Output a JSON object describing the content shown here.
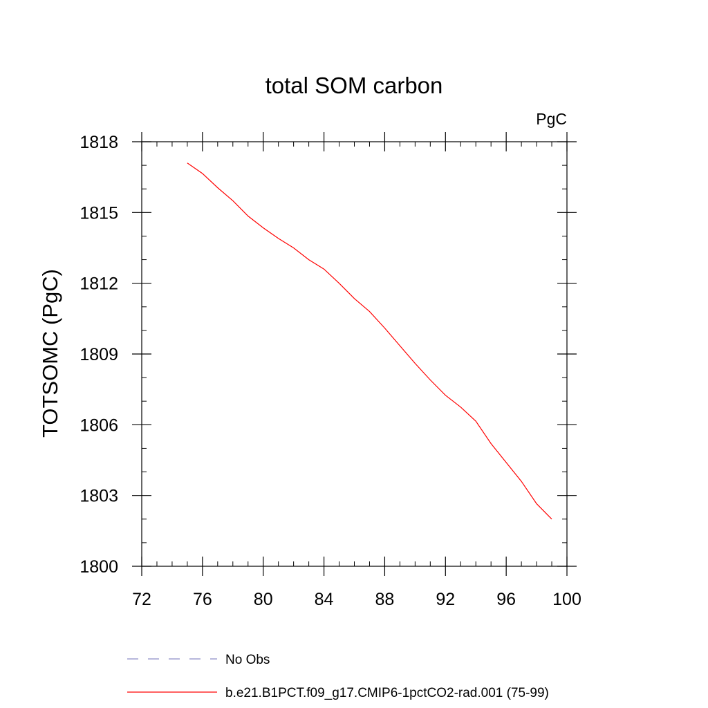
{
  "chart_data": {
    "type": "line",
    "title": "total SOM carbon",
    "units_label": "PgC",
    "xlabel": "",
    "ylabel": "TOTSOMC  (PgC)",
    "xlim": [
      72,
      100
    ],
    "ylim": [
      1800,
      1818
    ],
    "x_ticks": [
      72,
      76,
      80,
      84,
      88,
      92,
      96,
      100
    ],
    "x_tick_labels": [
      "72",
      "76",
      "80",
      "84",
      "88",
      "92",
      "96",
      "100"
    ],
    "x_minor_step": 1,
    "y_ticks": [
      1800,
      1803,
      1806,
      1809,
      1812,
      1815,
      1818
    ],
    "y_tick_labels": [
      "1800",
      "1803",
      "1806",
      "1809",
      "1812",
      "1815",
      "1818"
    ],
    "y_minor_step": 1,
    "grid": false,
    "legend_position": "bottom",
    "legend": [
      {
        "label": "No Obs",
        "style": "dashed",
        "color": "#8c8cc8"
      },
      {
        "label": "b.e21.B1PCT.f09_g17.CMIP6-1pctCO2-rad.001 (75-99)",
        "style": "solid",
        "color": "#ff0000"
      }
    ],
    "series": [
      {
        "name": "b.e21.B1PCT.f09_g17.CMIP6-1pctCO2-rad.001 (75-99)",
        "color": "#ff0000",
        "x": [
          75,
          76,
          77,
          78,
          79,
          80,
          81,
          82,
          83,
          84,
          85,
          86,
          87,
          88,
          89,
          90,
          91,
          92,
          93,
          94,
          95,
          96,
          97,
          98,
          99
        ],
        "values": [
          1817.1,
          1816.65,
          1816.05,
          1815.5,
          1814.85,
          1814.35,
          1813.9,
          1813.5,
          1813.0,
          1812.6,
          1812.0,
          1811.35,
          1810.8,
          1810.1,
          1809.35,
          1808.6,
          1807.9,
          1807.25,
          1806.75,
          1806.15,
          1805.2,
          1804.4,
          1803.6,
          1802.65,
          1802.0
        ]
      }
    ]
  }
}
